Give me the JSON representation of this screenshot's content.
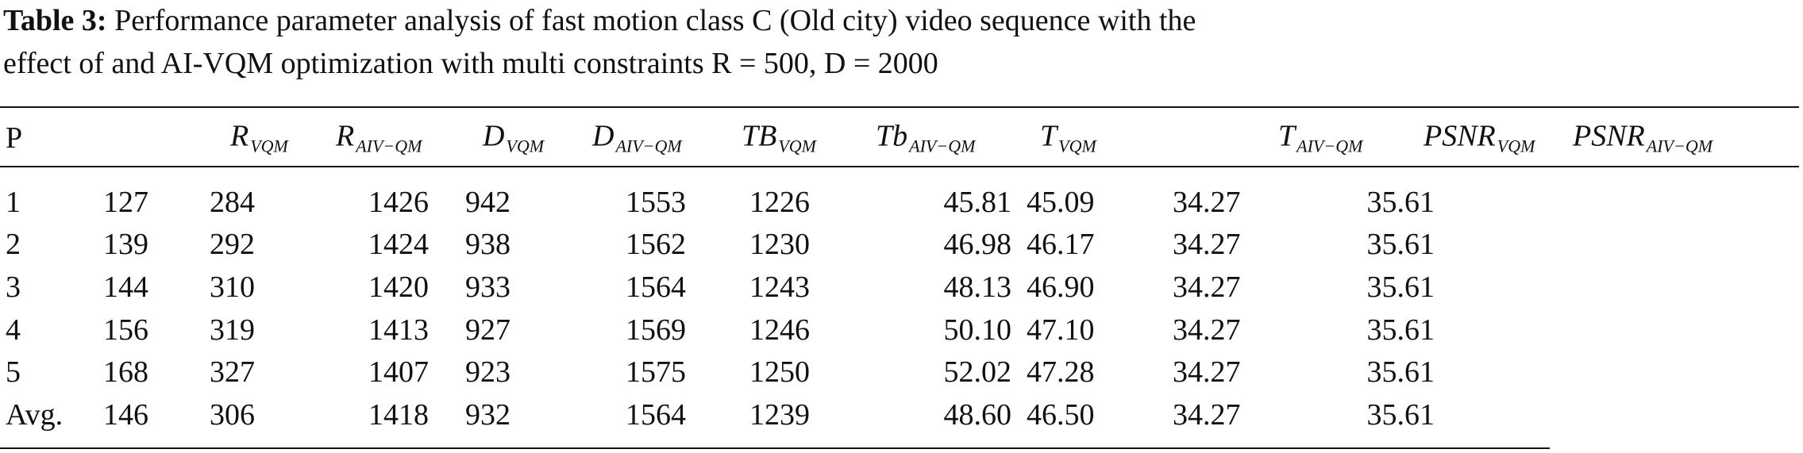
{
  "caption": {
    "label": "Table 3:",
    "line1": "Performance parameter analysis of fast motion class C (Old city) video sequence with the",
    "line2": "effect of and AI-VQM optimization with multi constraints R = 500, D = 2000"
  },
  "table": {
    "header": [
      {
        "main": "P"
      },
      {
        "main": "R",
        "sub": "VQM"
      },
      {
        "main": "R",
        "sub": "AIV−QM"
      },
      {
        "main": "D",
        "sub": "VQM"
      },
      {
        "main": "D",
        "sub": "AIV−QM"
      },
      {
        "main": "TB",
        "sub": "VQM"
      },
      {
        "main": "Tb",
        "sub": "AIV−QM"
      },
      {
        "main": "T",
        "sub": "VQM"
      },
      {
        "main": "T",
        "sub": "AIV−QM"
      },
      {
        "main": "PSNR",
        "sub": "VQM"
      },
      {
        "main": "PSNR",
        "sub": "AIV−QM"
      }
    ],
    "rows": [
      [
        "1",
        "127",
        "284",
        "1426",
        "942",
        "1553",
        "1226",
        "45.81",
        "45.09",
        "34.27",
        "35.61"
      ],
      [
        "2",
        "139",
        "292",
        "1424",
        "938",
        "1562",
        "1230",
        "46.98",
        "46.17",
        "34.27",
        "35.61"
      ],
      [
        "3",
        "144",
        "310",
        "1420",
        "933",
        "1564",
        "1243",
        "48.13",
        "46.90",
        "34.27",
        "35.61"
      ],
      [
        "4",
        "156",
        "319",
        "1413",
        "927",
        "1569",
        "1246",
        "50.10",
        "47.10",
        "34.27",
        "35.61"
      ],
      [
        "5",
        "168",
        "327",
        "1407",
        "923",
        "1575",
        "1250",
        "52.02",
        "47.28",
        "34.27",
        "35.61"
      ],
      [
        "Avg.",
        "146",
        "306",
        "1418",
        "932",
        "1564",
        "1239",
        "48.60",
        "46.50",
        "34.27",
        "35.61"
      ]
    ]
  }
}
